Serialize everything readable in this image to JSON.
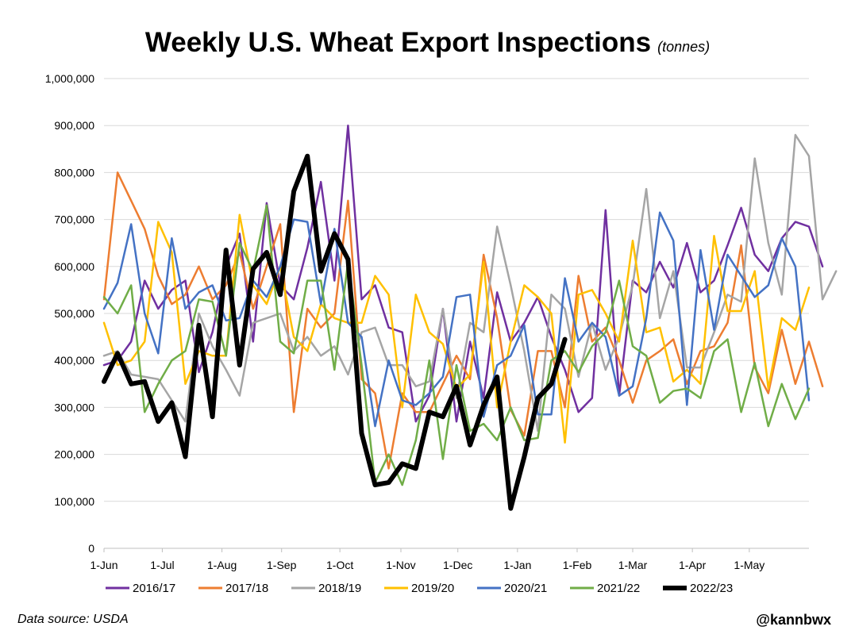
{
  "title": "Weekly U.S. Wheat Export Inspections",
  "subtitle": "(tonnes)",
  "footer": {
    "source": "Data source: USDA",
    "handle": "@kannbwx"
  },
  "chart_data": {
    "type": "line",
    "ylim": [
      0,
      1000000
    ],
    "ytick_values": [
      0,
      100000,
      200000,
      300000,
      400000,
      500000,
      600000,
      700000,
      800000,
      900000,
      1000000
    ],
    "ytick_labels": [
      "0",
      "100,000",
      "200,000",
      "300,000",
      "400,000",
      "500,000",
      "600,000",
      "700,000",
      "800,000",
      "900,000",
      "1,000,000"
    ],
    "x_unit": "week index (0 = first week of June)",
    "xlim": [
      0,
      52
    ],
    "xtick_labels": [
      "1-Jun",
      "1-Jul",
      "1-Aug",
      "1-Sep",
      "1-Oct",
      "1-Nov",
      "1-Dec",
      "1-Jan",
      "1-Feb",
      "1-Mar",
      "1-Apr",
      "1-May"
    ],
    "xtick_weeks": [
      0,
      4.3,
      8.7,
      13.1,
      17.4,
      21.9,
      26.1,
      30.5,
      34.9,
      39.0,
      43.4,
      47.6
    ],
    "grid": "horizontal",
    "legend": "bottom",
    "series": [
      {
        "name": "2016/17",
        "color": "#7030A0",
        "width": 2.5,
        "values": [
          390000,
          400000,
          440000,
          570000,
          510000,
          550000,
          570000,
          375000,
          460000,
          600000,
          670000,
          440000,
          735000,
          560000,
          530000,
          640000,
          780000,
          570000,
          900000,
          530000,
          560000,
          470000,
          460000,
          270000,
          325000,
          510000,
          270000,
          440000,
          320000,
          545000,
          440000,
          480000,
          535000,
          450000,
          380000,
          290000,
          320000,
          720000,
          325000,
          570000,
          545000,
          610000,
          555000,
          650000,
          545000,
          570000,
          645000,
          725000,
          625000,
          590000,
          660000,
          695000,
          685000,
          600000
        ]
      },
      {
        "name": "2017/18",
        "color": "#ED7D31",
        "width": 2.5,
        "values": [
          530000,
          800000,
          740000,
          680000,
          580000,
          520000,
          540000,
          600000,
          530000,
          560000,
          630000,
          510000,
          600000,
          690000,
          290000,
          510000,
          470000,
          500000,
          740000,
          360000,
          330000,
          170000,
          330000,
          290000,
          290000,
          350000,
          410000,
          360000,
          625000,
          490000,
          295000,
          240000,
          420000,
          420000,
          300000,
          580000,
          440000,
          470000,
          400000,
          310000,
          400000,
          420000,
          445000,
          350000,
          420000,
          430000,
          480000,
          645000,
          385000,
          330000,
          465000,
          350000,
          440000,
          345000
        ]
      },
      {
        "name": "2018/19",
        "color": "#A5A5A5",
        "width": 2.5,
        "values": [
          410000,
          420000,
          370000,
          365000,
          360000,
          315000,
          270000,
          500000,
          430000,
          380000,
          325000,
          480000,
          490000,
          500000,
          420000,
          450000,
          410000,
          430000,
          370000,
          460000,
          470000,
          390000,
          390000,
          345000,
          355000,
          510000,
          320000,
          480000,
          460000,
          685000,
          560000,
          420000,
          250000,
          540000,
          510000,
          365000,
          480000,
          380000,
          450000,
          560000,
          765000,
          490000,
          590000,
          385000,
          385000,
          460000,
          540000,
          525000,
          830000,
          650000,
          540000,
          880000,
          835000,
          530000,
          590000
        ]
      },
      {
        "name": "2019/20",
        "color": "#FFC000",
        "width": 2.5,
        "values": [
          480000,
          390000,
          400000,
          440000,
          695000,
          630000,
          350000,
          420000,
          410000,
          410000,
          710000,
          560000,
          520000,
          600000,
          450000,
          420000,
          520000,
          490000,
          480000,
          480000,
          580000,
          540000,
          300000,
          540000,
          460000,
          435000,
          340000,
          370000,
          610000,
          300000,
          440000,
          560000,
          535000,
          500000,
          225000,
          540000,
          550000,
          500000,
          440000,
          655000,
          460000,
          470000,
          355000,
          380000,
          350000,
          665000,
          505000,
          505000,
          590000,
          340000,
          490000,
          465000,
          555000
        ]
      },
      {
        "name": "2020/21",
        "color": "#4472C4",
        "width": 2.5,
        "values": [
          510000,
          565000,
          690000,
          500000,
          415000,
          660000,
          510000,
          545000,
          560000,
          485000,
          490000,
          570000,
          535000,
          600000,
          700000,
          695000,
          520000,
          680000,
          480000,
          450000,
          260000,
          400000,
          315000,
          305000,
          330000,
          365000,
          535000,
          540000,
          280000,
          390000,
          410000,
          475000,
          285000,
          285000,
          575000,
          440000,
          480000,
          450000,
          325000,
          345000,
          490000,
          715000,
          655000,
          305000,
          635000,
          465000,
          625000,
          580000,
          535000,
          560000,
          660000,
          600000,
          315000
        ]
      },
      {
        "name": "2021/22",
        "color": "#70AD47",
        "width": 2.5,
        "values": [
          535000,
          500000,
          560000,
          290000,
          350000,
          400000,
          420000,
          530000,
          525000,
          410000,
          650000,
          590000,
          730000,
          440000,
          415000,
          570000,
          570000,
          380000,
          610000,
          390000,
          140000,
          200000,
          135000,
          230000,
          400000,
          190000,
          390000,
          250000,
          265000,
          230000,
          300000,
          230000,
          235000,
          400000,
          420000,
          375000,
          430000,
          460000,
          570000,
          430000,
          410000,
          310000,
          335000,
          340000,
          320000,
          420000,
          445000,
          290000,
          395000,
          260000,
          350000,
          275000,
          340000
        ]
      },
      {
        "name": "2022/23",
        "color": "#000000",
        "width": 6,
        "values": [
          355000,
          415000,
          350000,
          355000,
          270000,
          310000,
          195000,
          475000,
          280000,
          635000,
          390000,
          595000,
          630000,
          540000,
          760000,
          835000,
          590000,
          670000,
          615000,
          245000,
          135000,
          140000,
          180000,
          170000,
          290000,
          280000,
          345000,
          220000,
          305000,
          365000,
          85000,
          195000,
          320000,
          350000,
          445000
        ]
      }
    ]
  }
}
